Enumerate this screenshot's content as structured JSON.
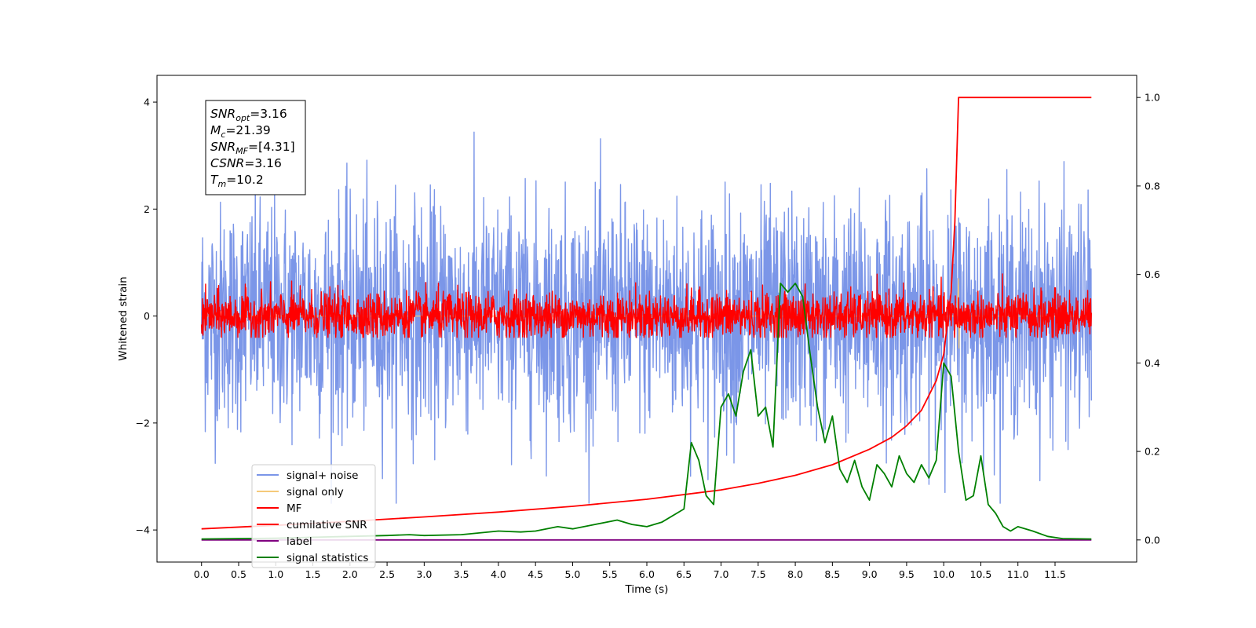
{
  "chart_data": {
    "type": "line",
    "xlabel": "Time (s)",
    "ylabel": "Whitened strain",
    "xlim": [
      -0.6,
      12.6
    ],
    "ylim": [
      -4.6,
      4.5
    ],
    "y2lim": [
      -0.05,
      1.05
    ],
    "x_ticks": [
      0.0,
      0.5,
      1.0,
      1.5,
      2.0,
      2.5,
      3.0,
      3.5,
      4.0,
      4.5,
      5.0,
      5.5,
      6.0,
      6.5,
      7.0,
      7.5,
      8.0,
      8.5,
      9.0,
      9.5,
      10.0,
      10.5,
      11.0,
      11.5
    ],
    "x_tick_labels": [
      "0.0",
      "0.5",
      "1.0",
      "1.5",
      "2.0",
      "2.5",
      "3.0",
      "3.5",
      "4.0",
      "4.5",
      "5.0",
      "5.5",
      "6.0",
      "6.5",
      "7.0",
      "7.5",
      "8.0",
      "8.5",
      "9.0",
      "9.5",
      "10.0",
      "10.5",
      "11.0",
      "11.5"
    ],
    "y_ticks": [
      -4,
      -2,
      0,
      2,
      4
    ],
    "y_tick_labels": [
      "−4",
      "−2",
      "0",
      "2",
      "4"
    ],
    "y2_ticks": [
      0.0,
      0.2,
      0.4,
      0.6,
      0.8,
      1.0
    ],
    "y2_tick_labels": [
      "0.0",
      "0.2",
      "0.4",
      "0.6",
      "0.8",
      "1.0"
    ],
    "legend_placement": "lower-left",
    "grid": false,
    "info_box": [
      {
        "main": "SNR",
        "sub": "opt",
        "value": "=3.16"
      },
      {
        "main": "M",
        "sub": "c",
        "value": "=21.39"
      },
      {
        "main": "SNR",
        "sub": "MF",
        "value": "=[4.31]"
      },
      {
        "main": "CSNR",
        "sub": "",
        "value": "=3.16"
      },
      {
        "main": "T",
        "sub": "m",
        "value": "=10.2"
      }
    ],
    "series": [
      {
        "name": "signal+ noise",
        "color": "#7b96e8",
        "axis": "left",
        "style": "noise",
        "x_range": [
          0,
          11.99
        ],
        "amplitude": [
          -3.5,
          3.6
        ]
      },
      {
        "name": "signal only",
        "color": "#f5c97a",
        "axis": "left",
        "style": "flat",
        "x_range": [
          0,
          11.99
        ],
        "peak_time": 10.2,
        "value": 0
      },
      {
        "name": "MF",
        "color": "#ff0000",
        "axis": "left",
        "style": "noise",
        "x_range": [
          0,
          11.99
        ],
        "amplitude": [
          -0.4,
          0.85
        ]
      },
      {
        "name": "cumilative SNR",
        "color": "#ff0000",
        "axis": "right",
        "x": [
          0.0,
          1.0,
          2.0,
          3.0,
          4.0,
          5.0,
          6.0,
          7.0,
          7.5,
          8.0,
          8.5,
          9.0,
          9.3,
          9.5,
          9.7,
          9.9,
          10.0,
          10.1,
          10.15,
          10.2,
          11.99
        ],
        "y": [
          0.025,
          0.033,
          0.042,
          0.052,
          0.063,
          0.076,
          0.092,
          0.113,
          0.128,
          0.146,
          0.17,
          0.205,
          0.232,
          0.258,
          0.293,
          0.36,
          0.42,
          0.56,
          0.72,
          1.0,
          1.0
        ]
      },
      {
        "name": "label",
        "color": "#800080",
        "axis": "right",
        "x": [
          0.0,
          11.99
        ],
        "y": [
          0.0,
          0.0
        ]
      },
      {
        "name": "signal statistics",
        "color": "#008000",
        "axis": "right",
        "x": [
          0.0,
          0.5,
          1.0,
          1.5,
          2.0,
          2.5,
          2.8,
          3.0,
          3.5,
          4.0,
          4.3,
          4.5,
          4.8,
          5.0,
          5.3,
          5.6,
          5.8,
          6.0,
          6.2,
          6.5,
          6.6,
          6.7,
          6.8,
          6.9,
          7.0,
          7.1,
          7.2,
          7.3,
          7.4,
          7.5,
          7.6,
          7.7,
          7.8,
          7.9,
          8.0,
          8.1,
          8.2,
          8.3,
          8.4,
          8.5,
          8.6,
          8.7,
          8.8,
          8.9,
          9.0,
          9.1,
          9.2,
          9.3,
          9.4,
          9.5,
          9.6,
          9.7,
          9.8,
          9.9,
          10.0,
          10.1,
          10.2,
          10.3,
          10.4,
          10.5,
          10.6,
          10.7,
          10.8,
          10.9,
          11.0,
          11.2,
          11.4,
          11.6,
          11.99
        ],
        "y": [
          0.002,
          0.003,
          0.004,
          0.006,
          0.008,
          0.01,
          0.012,
          0.01,
          0.012,
          0.02,
          0.018,
          0.02,
          0.03,
          0.025,
          0.035,
          0.045,
          0.035,
          0.03,
          0.04,
          0.07,
          0.22,
          0.18,
          0.1,
          0.08,
          0.3,
          0.33,
          0.28,
          0.38,
          0.43,
          0.28,
          0.3,
          0.21,
          0.58,
          0.56,
          0.58,
          0.55,
          0.42,
          0.3,
          0.22,
          0.28,
          0.16,
          0.13,
          0.18,
          0.12,
          0.09,
          0.17,
          0.15,
          0.12,
          0.19,
          0.15,
          0.13,
          0.17,
          0.14,
          0.18,
          0.4,
          0.37,
          0.2,
          0.09,
          0.1,
          0.19,
          0.08,
          0.06,
          0.03,
          0.02,
          0.03,
          0.02,
          0.008,
          0.003,
          0.002
        ]
      }
    ]
  }
}
